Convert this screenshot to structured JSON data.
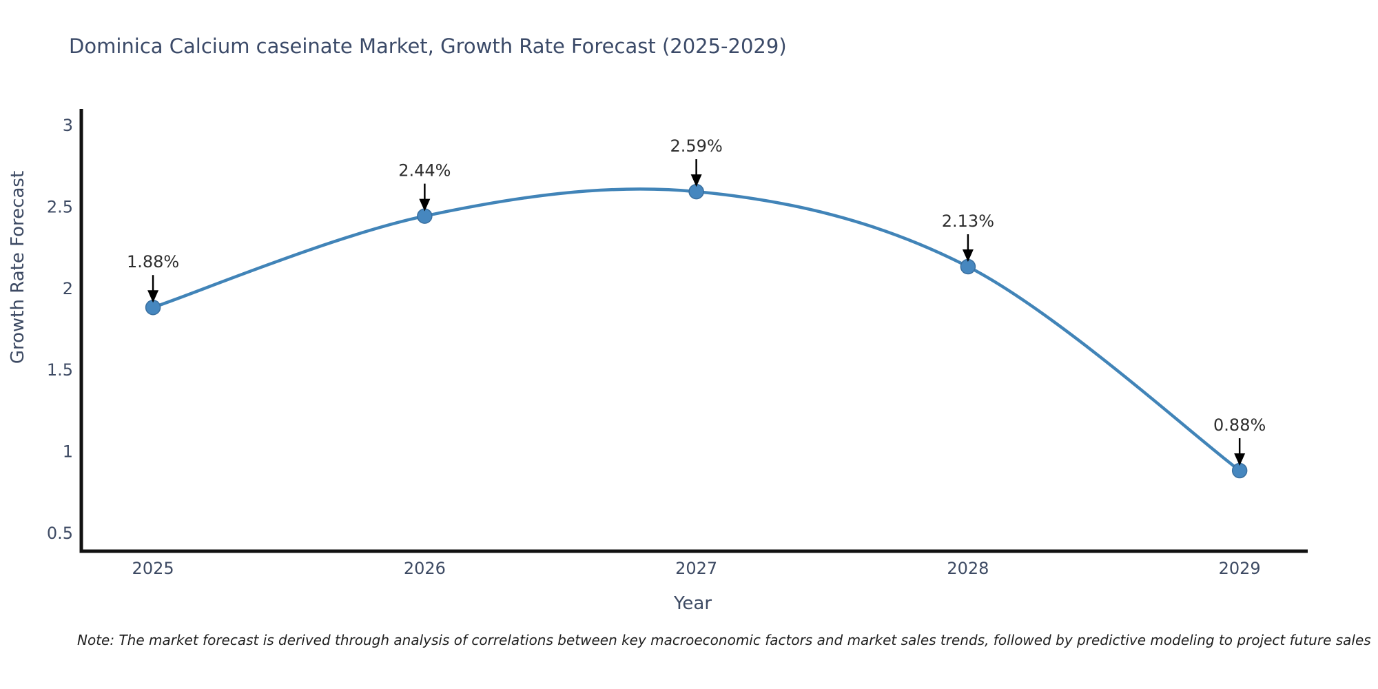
{
  "chart_data": {
    "type": "line",
    "title": "Dominica Calcium caseinate Market, Growth Rate Forecast (2025-2029)",
    "xlabel": "Year",
    "ylabel": "Growth Rate Forecast",
    "x": [
      2025,
      2026,
      2027,
      2028,
      2029
    ],
    "y": [
      1.88,
      2.44,
      2.59,
      2.13,
      0.88
    ],
    "point_labels": [
      "1.88%",
      "2.44%",
      "2.59%",
      "2.13%",
      "0.88%"
    ],
    "xtick_labels": [
      "2025",
      "2026",
      "2027",
      "2028",
      "2029"
    ],
    "xticks": [
      2025,
      2026,
      2027,
      2028,
      2029
    ],
    "ytick_labels": [
      "0.5",
      "1",
      "1.5",
      "2",
      "2.5",
      "3"
    ],
    "yticks": [
      0.5,
      1,
      1.5,
      2,
      2.5,
      3
    ],
    "xlim": [
      2024.736,
      2029.238
    ],
    "ylim": [
      0.386,
      3.097
    ],
    "grid": false,
    "legend": "none",
    "curve": "smooth",
    "line_color": "#4184b8",
    "marker_color": "#4687bf",
    "marker_edge_color": "#3a6f9f",
    "annotation_color": "#2e2e2e",
    "arrow_color": "#000000",
    "axis_color": "#111111",
    "tick_color": "#3d4a63",
    "title_color": "#3b4a68"
  },
  "note": "Note: The market forecast is derived through analysis of correlations between key macroeconomic factors and market sales trends, followed by predictive modeling to project future sales"
}
